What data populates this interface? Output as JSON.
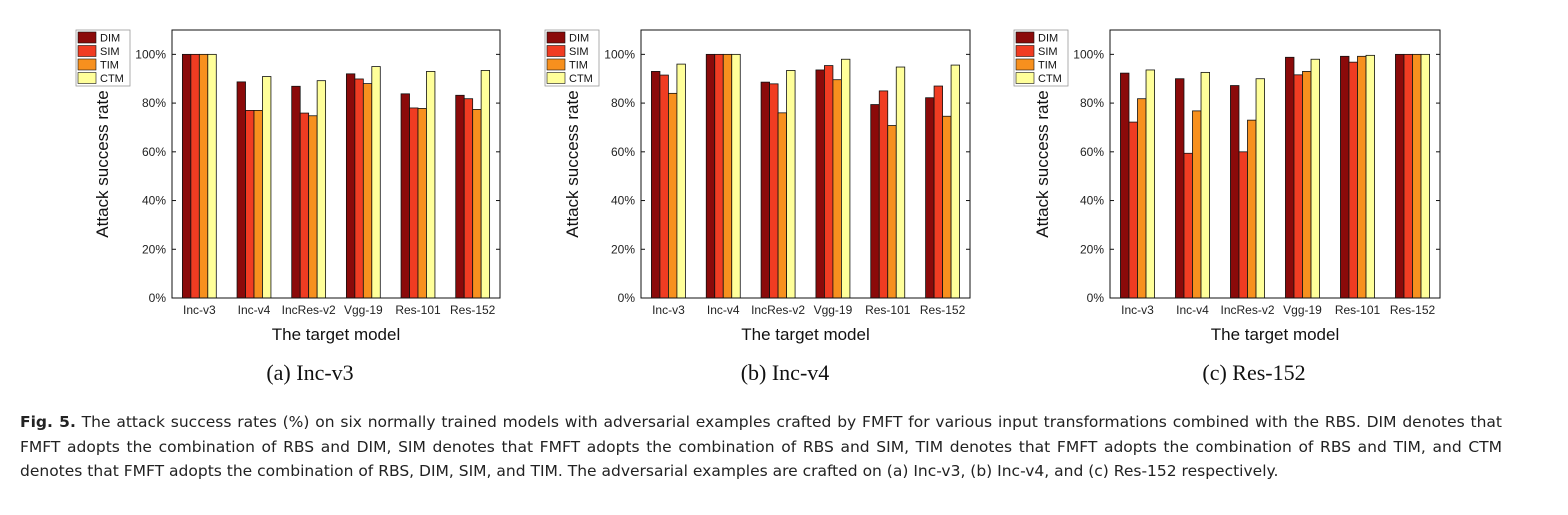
{
  "chart_data": [
    {
      "type": "bar",
      "subtitle": "(a) Inc-v3",
      "xlabel": "The target model",
      "ylabel": "Attack success rate",
      "ylim": [
        0,
        110
      ],
      "yticks": [
        "0%",
        "20%",
        "40%",
        "60%",
        "80%",
        "100%"
      ],
      "legend": "top-left",
      "categories": [
        "Inc-v3",
        "Inc-v4",
        "IncRes-v2",
        "Vgg-19",
        "Res-101",
        "Res-152"
      ],
      "series": [
        {
          "name": "DIM",
          "values": [
            100,
            88.7,
            86.9,
            92.0,
            83.8,
            83.2
          ]
        },
        {
          "name": "SIM",
          "values": [
            100,
            77.0,
            75.9,
            89.9,
            78.0,
            81.8
          ]
        },
        {
          "name": "TIM",
          "values": [
            100,
            77.0,
            74.8,
            88.0,
            77.8,
            77.4
          ]
        },
        {
          "name": "CTM",
          "values": [
            100,
            90.9,
            89.2,
            95.0,
            93.0,
            93.4
          ]
        }
      ]
    },
    {
      "type": "bar",
      "subtitle": "(b) Inc-v4",
      "xlabel": "The target model",
      "ylabel": "Attack success rate",
      "ylim": [
        0,
        110
      ],
      "yticks": [
        "0%",
        "20%",
        "40%",
        "60%",
        "80%",
        "100%"
      ],
      "legend": "top-left",
      "categories": [
        "Inc-v3",
        "Inc-v4",
        "IncRes-v2",
        "Vgg-19",
        "Res-101",
        "Res-152"
      ],
      "series": [
        {
          "name": "DIM",
          "values": [
            93.0,
            100,
            88.6,
            93.6,
            79.4,
            82.2
          ]
        },
        {
          "name": "SIM",
          "values": [
            91.5,
            100,
            87.9,
            95.4,
            85.0,
            87.0
          ]
        },
        {
          "name": "TIM",
          "values": [
            84.0,
            100,
            76.0,
            89.6,
            70.8,
            74.6
          ]
        },
        {
          "name": "CTM",
          "values": [
            96.0,
            100,
            93.4,
            98.0,
            94.8,
            95.6
          ]
        }
      ]
    },
    {
      "type": "bar",
      "subtitle": "(c) Res-152",
      "xlabel": "The target model",
      "ylabel": "Attack success rate",
      "ylim": [
        0,
        110
      ],
      "yticks": [
        "0%",
        "20%",
        "40%",
        "60%",
        "80%",
        "100%"
      ],
      "legend": "top-left",
      "categories": [
        "Inc-v3",
        "Inc-v4",
        "IncRes-v2",
        "Vgg-19",
        "Res-101",
        "Res-152"
      ],
      "series": [
        {
          "name": "DIM",
          "values": [
            92.3,
            90.0,
            87.2,
            98.8,
            99.2,
            100
          ]
        },
        {
          "name": "SIM",
          "values": [
            72.2,
            59.4,
            60.0,
            91.6,
            96.8,
            100
          ]
        },
        {
          "name": "TIM",
          "values": [
            81.8,
            76.8,
            73.0,
            93.0,
            99.2,
            100
          ]
        },
        {
          "name": "CTM",
          "values": [
            93.6,
            92.6,
            90.0,
            98.0,
            99.6,
            100
          ]
        }
      ]
    }
  ],
  "colors": {
    "DIM": "#8b0a0a",
    "SIM": "#f03c22",
    "TIM": "#f7901e",
    "CTM": "#ffff9a"
  },
  "caption": {
    "label": "Fig. 5.",
    "text": "The attack success rates (%) on six normally trained models with adversarial examples crafted by FMFT for various input transformations combined with the RBS. DIM denotes that FMFT adopts the combination of RBS and DIM, SIM denotes that FMFT adopts the combination of RBS and SIM, TIM denotes that FMFT adopts the combination of RBS and TIM, and CTM denotes that FMFT adopts the combination of RBS, DIM, SIM, and TIM. The adversarial examples are crafted on (a) Inc-v3, (b) Inc-v4, and (c) Res-152 respectively."
  }
}
